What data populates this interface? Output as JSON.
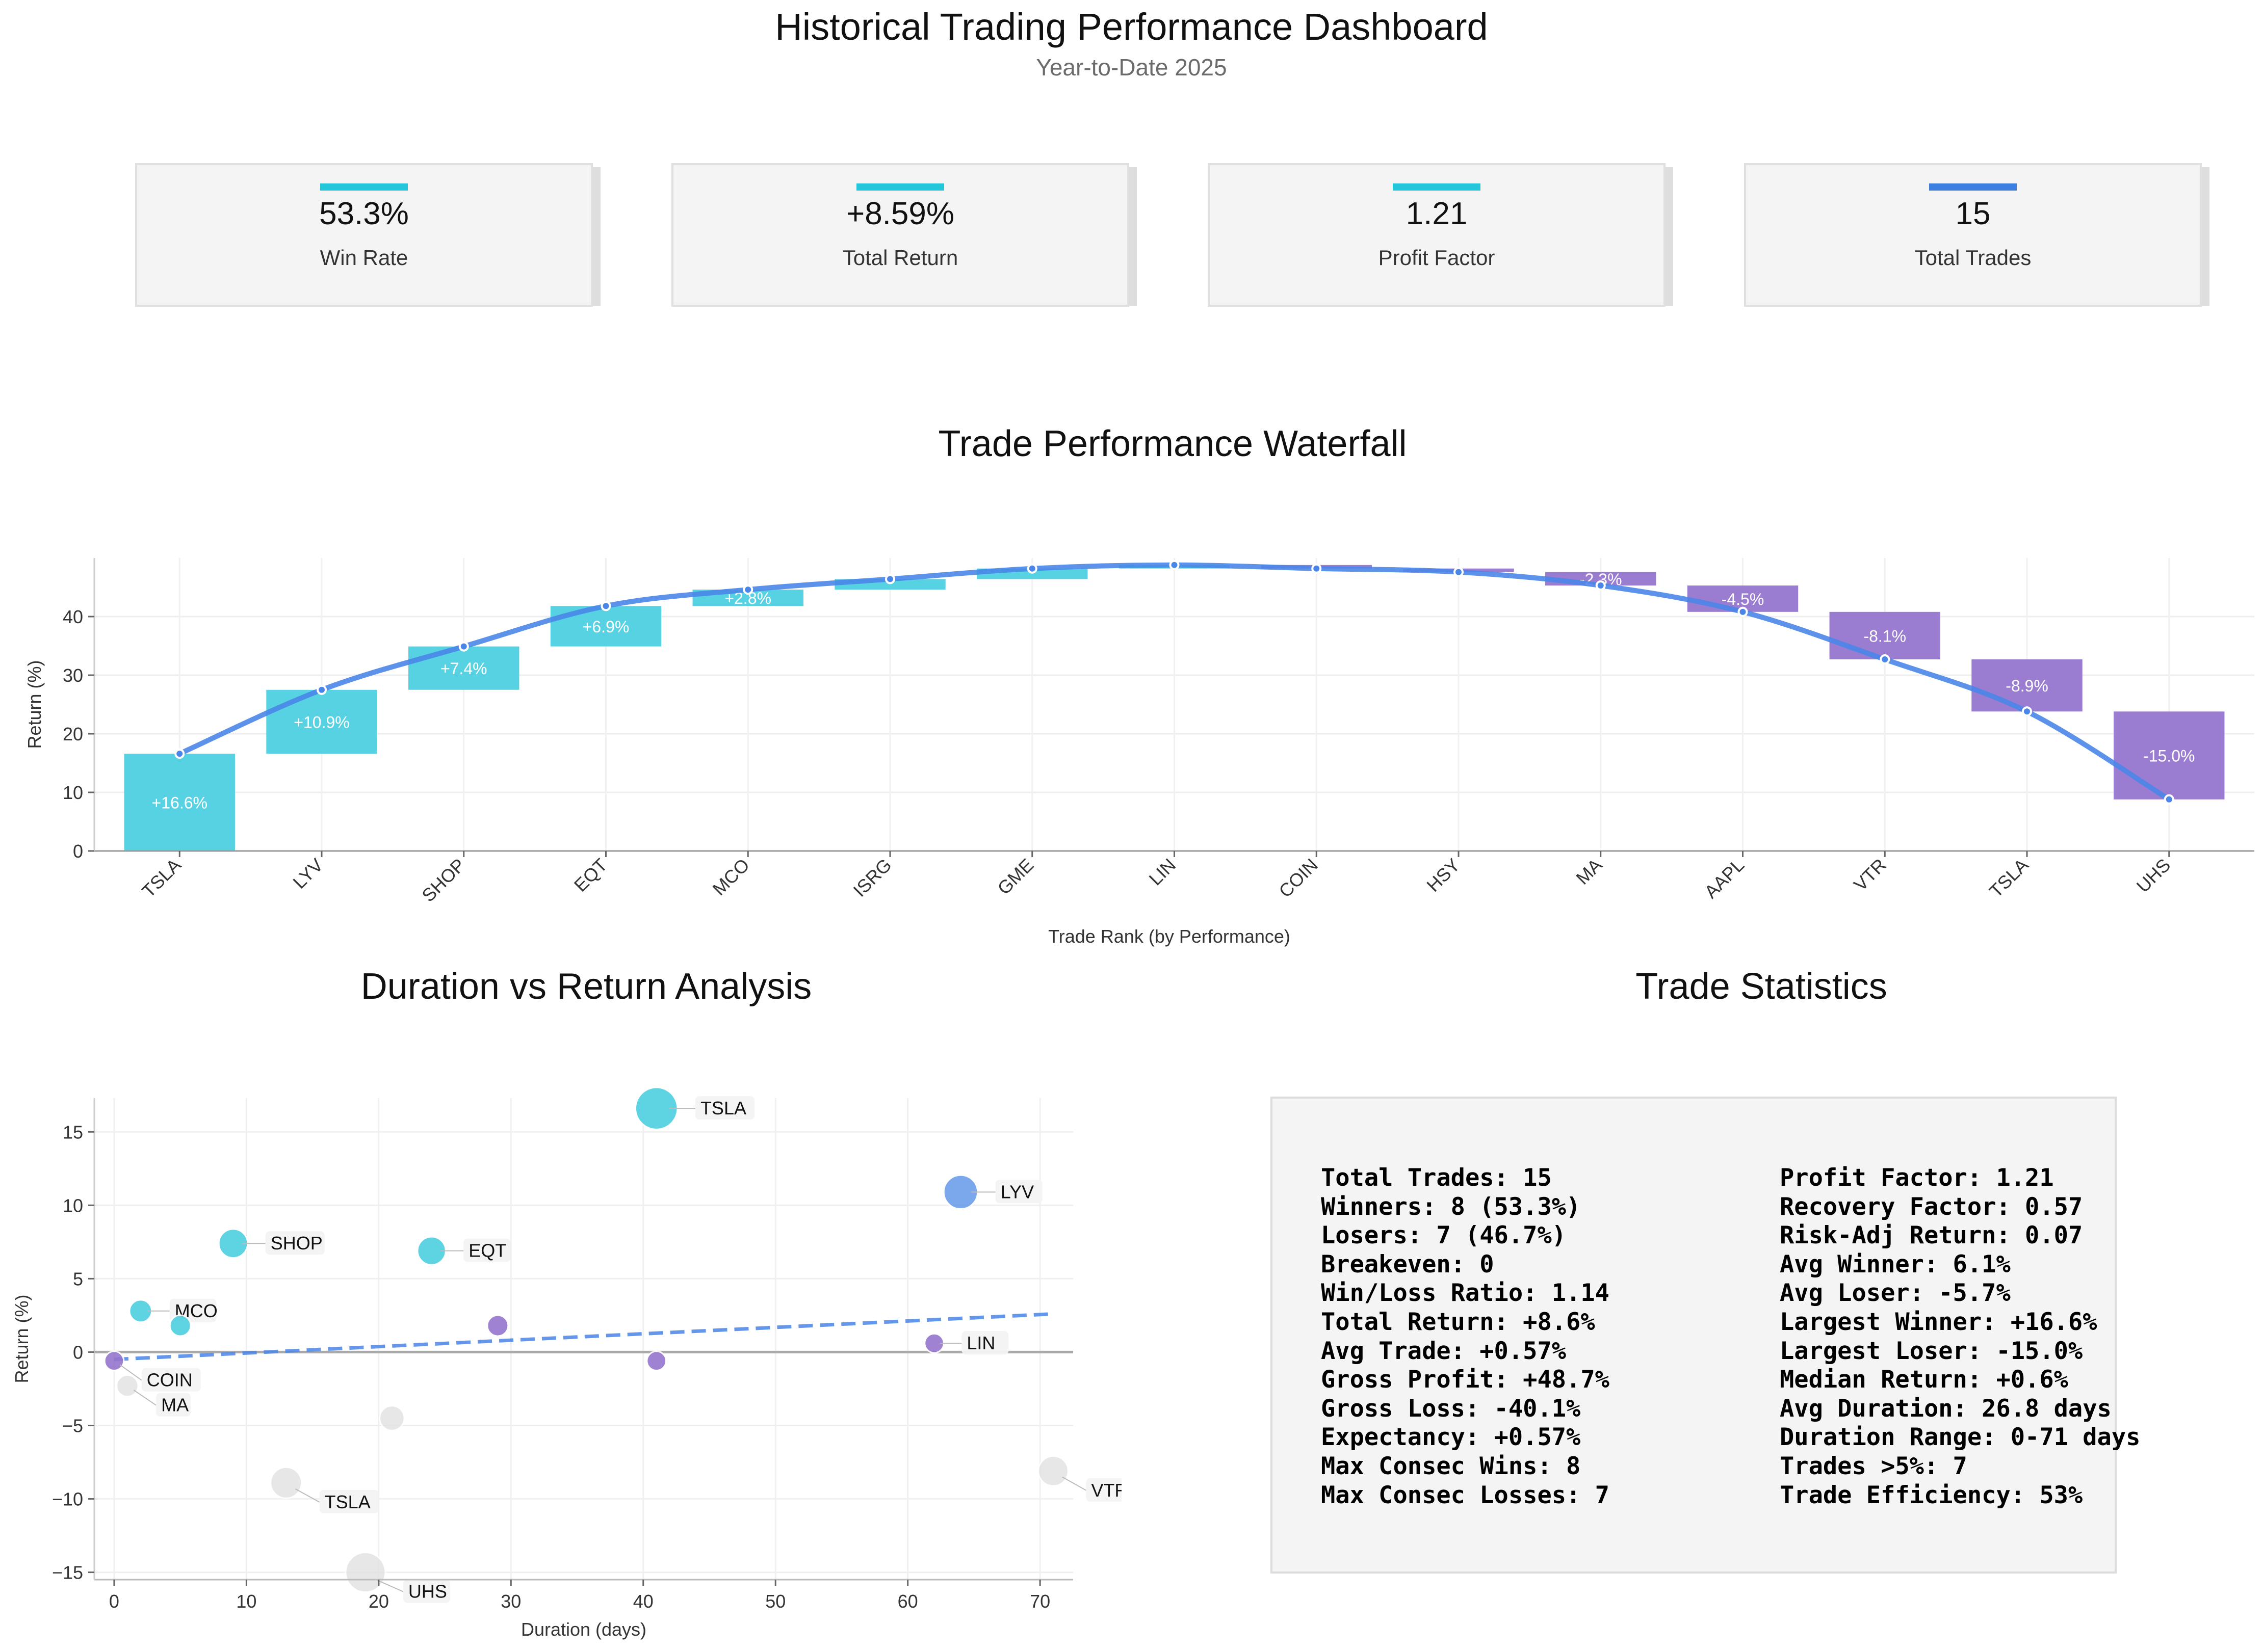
{
  "header": {
    "title": "Historical Trading Performance Dashboard",
    "subtitle": "Year-to-Date 2025"
  },
  "kpis": [
    {
      "value": "53.3%",
      "label": "Win Rate",
      "color": "#26c6da"
    },
    {
      "value": "+8.59%",
      "label": "Total Return",
      "color": "#26c6da"
    },
    {
      "value": "1.21",
      "label": "Profit Factor",
      "color": "#26c6da"
    },
    {
      "value": "15",
      "label": "Total Trades",
      "color": "#3d7fe0"
    }
  ],
  "colors": {
    "win": "#4dd0e1",
    "loss": "#9575cd",
    "line": "#4a86e8",
    "neutral": "#e0e0e0",
    "blue_point": "#6d9eeb"
  },
  "chart_data": [
    {
      "type": "bar",
      "title": "Trade Performance Waterfall",
      "xlabel": "Trade Rank (by Performance)",
      "ylabel": "Return (%)",
      "categories": [
        "TSLA",
        "LYV",
        "SHOP",
        "EQT",
        "MCO",
        "ISRG",
        "GME",
        "LIN",
        "COIN",
        "HSY",
        "MA",
        "AAPL",
        "VTR",
        "TSLA",
        "UHS"
      ],
      "values": [
        16.6,
        10.9,
        7.4,
        6.9,
        2.8,
        1.8,
        1.8,
        0.6,
        -0.6,
        -0.6,
        -2.3,
        -4.5,
        -8.1,
        -8.9,
        -15.0
      ],
      "bar_labels": [
        "+16.6%",
        "+10.9%",
        "+7.4%",
        "+6.9%",
        "+2.8%",
        "",
        "",
        "",
        "",
        "",
        "-2.3%",
        "-4.5%",
        "-8.1%",
        "-8.9%",
        "-15.0%"
      ],
      "cumulative_line": true,
      "yticks": [
        0,
        10,
        20,
        30,
        40
      ],
      "ylim": [
        0,
        50
      ],
      "grid": true
    },
    {
      "type": "scatter",
      "title": "Duration vs Return Analysis",
      "xlabel": "Duration (days)",
      "ylabel": "Return (%)",
      "xticks": [
        0,
        10,
        20,
        30,
        40,
        50,
        60,
        70
      ],
      "yticks": [
        -15,
        -10,
        -5,
        0,
        5,
        10,
        15
      ],
      "xlim": [
        -1.5,
        72.5
      ],
      "ylim": [
        -15.5,
        17.3
      ],
      "grid": true,
      "points": [
        {
          "x": 41,
          "y": 16.6,
          "label": "TSLA",
          "color": "win"
        },
        {
          "x": 64,
          "y": 10.9,
          "label": "LYV",
          "color": "blue_point"
        },
        {
          "x": 9,
          "y": 7.4,
          "label": "SHOP",
          "color": "win"
        },
        {
          "x": 24,
          "y": 6.9,
          "label": "EQT",
          "color": "win"
        },
        {
          "x": 2,
          "y": 2.8,
          "label": "MCO",
          "color": "win"
        },
        {
          "x": 5,
          "y": 1.8,
          "label": "",
          "color": "win"
        },
        {
          "x": 29,
          "y": 1.8,
          "label": "",
          "color": "loss"
        },
        {
          "x": 62,
          "y": 0.6,
          "label": "LIN",
          "color": "loss"
        },
        {
          "x": 0,
          "y": -0.6,
          "label": "COIN",
          "color": "loss"
        },
        {
          "x": 41,
          "y": -0.6,
          "label": "",
          "color": "loss"
        },
        {
          "x": 1,
          "y": -2.3,
          "label": "MA",
          "color": "neutral"
        },
        {
          "x": 21,
          "y": -4.5,
          "label": "",
          "color": "neutral"
        },
        {
          "x": 71,
          "y": -8.1,
          "label": "VTR",
          "color": "neutral"
        },
        {
          "x": 13,
          "y": -8.9,
          "label": "TSLA",
          "color": "neutral"
        },
        {
          "x": 19,
          "y": -15.0,
          "label": "UHS",
          "color": "neutral"
        }
      ],
      "trendline": {
        "x": [
          0,
          71
        ],
        "y": [
          -0.5,
          2.6
        ]
      }
    }
  ],
  "stats": {
    "title": "Trade Statistics",
    "left": [
      "Total Trades: 15",
      "Winners: 8 (53.3%)",
      "Losers: 7 (46.7%)",
      "Breakeven: 0",
      "Win/Loss Ratio: 1.14",
      "Total Return: +8.6%",
      "Avg Trade: +0.57%",
      "Gross Profit: +48.7%",
      "Gross Loss: -40.1%",
      "Expectancy: +0.57%",
      "Max Consec Wins: 8",
      "Max Consec Losses: 7"
    ],
    "right": [
      "Profit Factor: 1.21",
      "Recovery Factor: 0.57",
      "Risk-Adj Return: 0.07",
      "Avg Winner: 6.1%",
      "Avg Loser: -5.7%",
      "Largest Winner: +16.6%",
      "Largest Loser: -15.0%",
      "Median Return: +0.6%",
      "Avg Duration: 26.8 days",
      "Duration Range: 0-71 days",
      "Trades >5%: 7",
      "Trade Efficiency: 53%"
    ]
  }
}
